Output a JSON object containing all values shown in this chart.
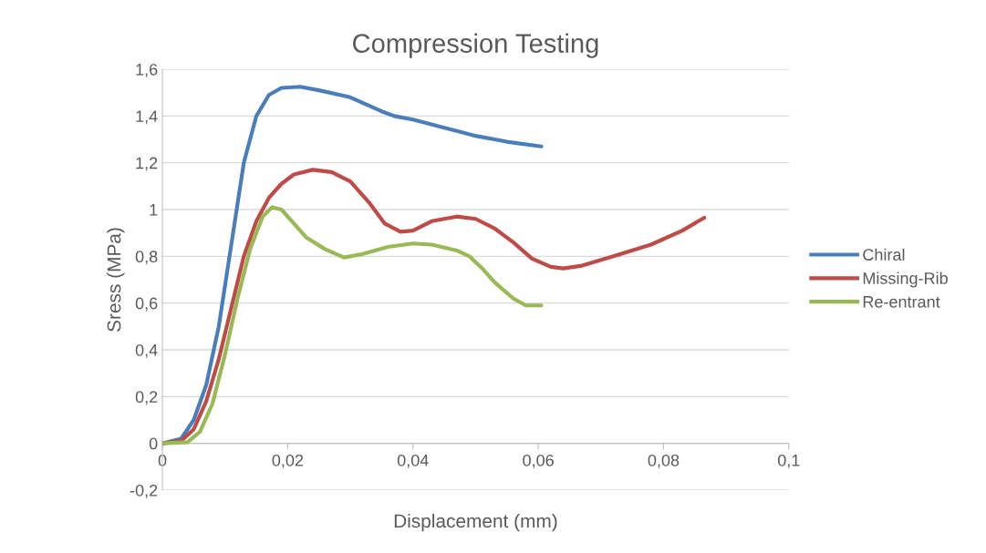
{
  "chart_data": {
    "type": "line",
    "title": "Compression Testing",
    "xlabel": "Displacement (mm)",
    "ylabel": "Sress (MPa)",
    "xlim": [
      0,
      0.1
    ],
    "ylim": [
      -0.2,
      1.6
    ],
    "xticks": [
      {
        "value": 0,
        "label": "0"
      },
      {
        "value": 0.02,
        "label": "0,02"
      },
      {
        "value": 0.04,
        "label": "0,04"
      },
      {
        "value": 0.06,
        "label": "0,06"
      },
      {
        "value": 0.08,
        "label": "0,08"
      },
      {
        "value": 0.1,
        "label": "0,1"
      }
    ],
    "yticks": [
      {
        "value": -0.2,
        "label": "-0,2"
      },
      {
        "value": 0,
        "label": "0"
      },
      {
        "value": 0.2,
        "label": "0,2"
      },
      {
        "value": 0.4,
        "label": "0,4"
      },
      {
        "value": 0.6,
        "label": "0,6"
      },
      {
        "value": 0.8,
        "label": "0,8"
      },
      {
        "value": 1,
        "label": "1"
      },
      {
        "value": 1.2,
        "label": "1,2"
      },
      {
        "value": 1.4,
        "label": "1,4"
      },
      {
        "value": 1.6,
        "label": "1,6"
      }
    ],
    "grid": "y",
    "legend": "right",
    "marker": "none",
    "line_style": "solid",
    "series": [
      {
        "name": "Chiral",
        "color": "#4a7ebb",
        "x": [
          0,
          0.003,
          0.005,
          0.007,
          0.009,
          0.011,
          0.013,
          0.015,
          0.017,
          0.019,
          0.022,
          0.025,
          0.03,
          0.035,
          0.037,
          0.04,
          0.045,
          0.05,
          0.055,
          0.0605
        ],
        "values": [
          0,
          0.02,
          0.1,
          0.25,
          0.5,
          0.85,
          1.2,
          1.4,
          1.49,
          1.52,
          1.525,
          1.51,
          1.48,
          1.42,
          1.4,
          1.385,
          1.35,
          1.315,
          1.29,
          1.27
        ]
      },
      {
        "name": "Missing-Rib",
        "color": "#be4b48",
        "x": [
          0,
          0.003,
          0.005,
          0.007,
          0.009,
          0.011,
          0.013,
          0.015,
          0.017,
          0.019,
          0.021,
          0.024,
          0.027,
          0.03,
          0.033,
          0.0355,
          0.038,
          0.04,
          0.043,
          0.047,
          0.05,
          0.053,
          0.056,
          0.059,
          0.062,
          0.064,
          0.067,
          0.072,
          0.078,
          0.083,
          0.0865
        ],
        "values": [
          0,
          0.01,
          0.06,
          0.18,
          0.36,
          0.58,
          0.8,
          0.95,
          1.05,
          1.11,
          1.15,
          1.17,
          1.16,
          1.12,
          1.03,
          0.94,
          0.905,
          0.91,
          0.95,
          0.97,
          0.96,
          0.92,
          0.86,
          0.79,
          0.755,
          0.748,
          0.76,
          0.8,
          0.85,
          0.91,
          0.965
        ]
      },
      {
        "name": "Re-entrant",
        "color": "#98b954",
        "x": [
          0,
          0.004,
          0.006,
          0.008,
          0.01,
          0.012,
          0.014,
          0.016,
          0.0175,
          0.019,
          0.021,
          0.023,
          0.026,
          0.029,
          0.032,
          0.036,
          0.04,
          0.043,
          0.047,
          0.049,
          0.051,
          0.053,
          0.056,
          0.058,
          0.0605
        ],
        "values": [
          0,
          0.005,
          0.05,
          0.17,
          0.38,
          0.62,
          0.83,
          0.97,
          1.01,
          1.0,
          0.94,
          0.88,
          0.83,
          0.795,
          0.81,
          0.84,
          0.855,
          0.85,
          0.825,
          0.8,
          0.75,
          0.69,
          0.62,
          0.59,
          0.59
        ]
      }
    ]
  }
}
